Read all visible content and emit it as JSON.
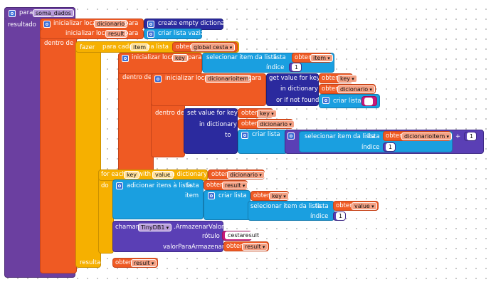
{
  "procedure": {
    "keyword": "para",
    "name": "soma_dados",
    "result_label": "resultado"
  },
  "init_dicionario": {
    "label": "inicializar local",
    "var": "dicionario",
    "to": "para",
    "value_block": "create empty dictionary"
  },
  "init_result": {
    "label": "inicializar local",
    "var": "result",
    "to": "para",
    "value_block": "criar lista vazia"
  },
  "outer_in": "dentro de",
  "do_label": "fazer",
  "foreach_item": {
    "label": "para cada",
    "var": "item",
    "in_list": "na lista",
    "get": "obter",
    "list_var": "global cesta"
  },
  "init_key": {
    "label": "inicializar local",
    "var": "key",
    "to": "para",
    "select_item": "selecionar item da lista",
    "list": "lista",
    "get": "obter",
    "get_var": "item",
    "index_label": "índice",
    "index": "1"
  },
  "in_label_2": "dentro de",
  "init_dicionarioitem": {
    "label": "inicializar local",
    "var": "dicionarioitem",
    "to": "para",
    "get_value": "get value for key",
    "get": "obter",
    "key_var": "key",
    "in_dictionary": "in dictionary",
    "dict_var": "dicionario",
    "or_not_found": "or if not found",
    "create_list": "criar lista",
    "empty_text": " "
  },
  "in_label_3": "dentro de",
  "set_value": {
    "label": "set value for key",
    "get": "obter",
    "key_var": "key",
    "in_dictionary": "in dictionary",
    "dict_var": "dicionario",
    "to": "to",
    "create_list": "criar lista",
    "select_item": "selecionar item da lista",
    "list": "lista",
    "dict_item_var": "dicionarioitem",
    "plus": "+",
    "plus_value": "1",
    "index_label": "índice",
    "index": "1"
  },
  "foreach_kv": {
    "label": "for each",
    "key": "key",
    "with": "with",
    "value": "value",
    "in_dictionary": "in dictionary",
    "get": "obter",
    "dict_var": "dicionario",
    "do": "do"
  },
  "add_items": {
    "label": "adicionar itens à lista",
    "list": "lista",
    "get": "obter",
    "list_var": "result",
    "item_label": "item",
    "create_list": "criar lista",
    "key_var": "key",
    "select_item": "selecionar item da lista",
    "list2": "lista",
    "value_var": "value",
    "index_label": "índice",
    "index": "1"
  },
  "store_value": {
    "call": "chamar",
    "component": "TinyDB1",
    "method": ".ArmazenarValor",
    "tag_label": "rótulo",
    "tag_value": "cestaresult",
    "value_label": "valorParaArmazenar",
    "get": "obter",
    "value_var": "result"
  },
  "return": {
    "label": "resultado",
    "get": "obter",
    "var": "result"
  },
  "colors": {
    "procedure": "#6b3fa0",
    "variables": "#ef5a23",
    "control": "#f6b000",
    "lists": "#1a9fe0",
    "dictionaries": "#2b2a9e",
    "math": "#5a3fb5",
    "text": "#c8197a"
  }
}
